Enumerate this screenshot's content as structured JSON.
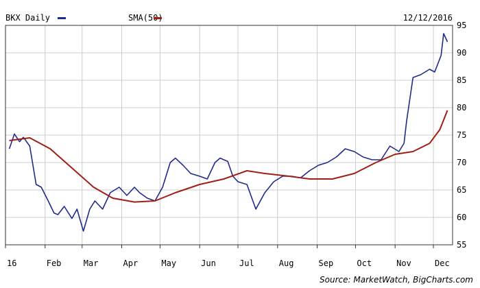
{
  "chart_data": {
    "type": "line",
    "legend": [
      {
        "name": "BKX Daily",
        "color": "#1f2a8c"
      },
      {
        "name": "SMA(50)",
        "color": "#a01e14"
      }
    ],
    "date": "12/12/2016",
    "x_tick_labels": [
      "16",
      "Feb",
      "Mar",
      "Apr",
      "May",
      "Jun",
      "Jul",
      "Aug",
      "Sep",
      "Oct",
      "Nov",
      "Dec"
    ],
    "x_tick_dates": [
      "2016-01-01",
      "2016-02-01",
      "2016-03-01",
      "2016-04-01",
      "2016-05-01",
      "2016-06-01",
      "2016-07-01",
      "2016-08-01",
      "2016-09-01",
      "2016-10-01",
      "2016-11-01",
      "2016-12-01"
    ],
    "y_ticks": [
      55,
      60,
      65,
      70,
      75,
      80,
      85,
      90,
      95
    ],
    "ylim": [
      55,
      95
    ],
    "xlim": [
      "2016-01-01",
      "2016-12-16"
    ],
    "grid": true,
    "source": "Source: MarketWatch, BigCharts.com",
    "series": [
      {
        "name": "BKX Daily",
        "color": "#1f2a8c",
        "x": [
          "2016-01-04",
          "2016-01-08",
          "2016-01-12",
          "2016-01-15",
          "2016-01-20",
          "2016-01-25",
          "2016-01-29",
          "2016-02-03",
          "2016-02-08",
          "2016-02-11",
          "2016-02-16",
          "2016-02-22",
          "2016-02-26",
          "2016-03-02",
          "2016-03-07",
          "2016-03-11",
          "2016-03-17",
          "2016-03-23",
          "2016-03-30",
          "2016-04-05",
          "2016-04-11",
          "2016-04-15",
          "2016-04-21",
          "2016-04-27",
          "2016-05-03",
          "2016-05-09",
          "2016-05-13",
          "2016-05-19",
          "2016-05-25",
          "2016-06-01",
          "2016-06-07",
          "2016-06-13",
          "2016-06-17",
          "2016-06-23",
          "2016-06-27",
          "2016-07-01",
          "2016-07-08",
          "2016-07-15",
          "2016-07-22",
          "2016-07-29",
          "2016-08-05",
          "2016-08-12",
          "2016-08-19",
          "2016-08-26",
          "2016-09-02",
          "2016-09-09",
          "2016-09-16",
          "2016-09-23",
          "2016-09-30",
          "2016-10-07",
          "2016-10-14",
          "2016-10-21",
          "2016-10-28",
          "2016-11-04",
          "2016-11-08",
          "2016-11-10",
          "2016-11-15",
          "2016-11-21",
          "2016-11-28",
          "2016-12-02",
          "2016-12-07",
          "2016-12-09",
          "2016-12-12"
        ],
        "values": [
          72.5,
          75.2,
          73.8,
          74.6,
          73.0,
          66.0,
          65.5,
          63.2,
          60.8,
          60.5,
          62.0,
          59.8,
          61.5,
          57.5,
          61.5,
          63.0,
          61.5,
          64.5,
          65.5,
          64.0,
          65.5,
          64.5,
          63.5,
          63.0,
          65.5,
          70.0,
          70.8,
          69.5,
          68.0,
          67.5,
          67.0,
          70.0,
          70.8,
          70.2,
          67.5,
          66.5,
          66.0,
          61.5,
          64.5,
          66.5,
          67.5,
          67.5,
          67.2,
          68.5,
          69.5,
          70.0,
          71.0,
          72.5,
          72.0,
          71.0,
          70.5,
          70.5,
          73.0,
          72.0,
          73.5,
          77.5,
          85.5,
          86.0,
          87.0,
          86.5,
          89.5,
          93.5,
          92.0
        ]
      },
      {
        "name": "SMA(50)",
        "color": "#a01e14",
        "x": [
          "2016-01-04",
          "2016-01-20",
          "2016-02-05",
          "2016-02-22",
          "2016-03-10",
          "2016-03-25",
          "2016-04-11",
          "2016-04-27",
          "2016-05-13",
          "2016-06-01",
          "2016-06-20",
          "2016-07-08",
          "2016-07-22",
          "2016-08-10",
          "2016-08-26",
          "2016-09-13",
          "2016-09-30",
          "2016-10-17",
          "2016-11-01",
          "2016-11-15",
          "2016-11-28",
          "2016-12-06",
          "2016-12-12"
        ],
        "values": [
          74.0,
          74.5,
          72.5,
          69.0,
          65.5,
          63.5,
          62.8,
          63.0,
          64.5,
          66.0,
          67.0,
          68.5,
          68.0,
          67.5,
          67.0,
          67.0,
          68.0,
          70.0,
          71.5,
          72.0,
          73.5,
          76.0,
          79.5
        ]
      }
    ]
  }
}
